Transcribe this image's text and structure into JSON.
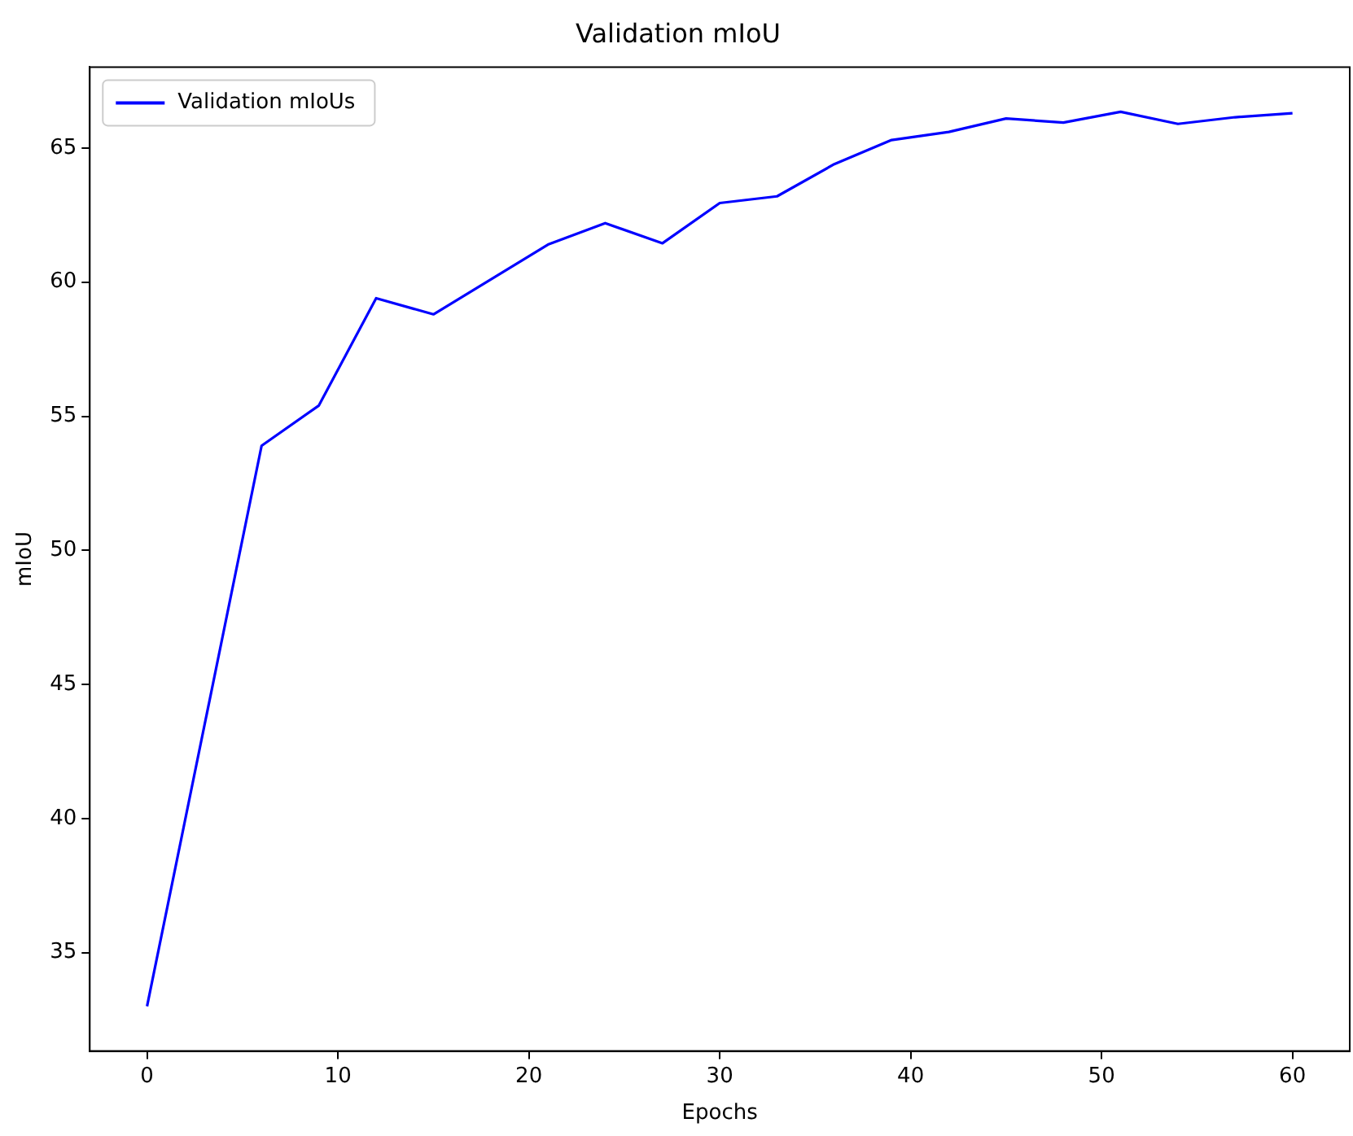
{
  "chart_data": {
    "type": "line",
    "title": "Validation mIoU",
    "xlabel": "Epochs",
    "ylabel": "mIoU",
    "x": [
      0,
      6,
      9,
      12,
      15,
      21,
      24,
      27,
      30,
      33,
      36,
      39,
      42,
      45,
      48,
      51,
      54,
      57,
      60
    ],
    "series": [
      {
        "name": "Validation mIoUs",
        "color": "#0000ff",
        "values": [
          33.0,
          53.9,
          55.4,
          59.4,
          58.8,
          61.4,
          62.2,
          61.45,
          62.95,
          63.2,
          64.4,
          65.3,
          65.6,
          66.1,
          65.95,
          66.35,
          65.9,
          66.15,
          66.3
        ]
      }
    ],
    "xlim": [
      -3,
      63
    ],
    "ylim": [
      31.33,
      68.02
    ],
    "xticks": [
      0,
      10,
      20,
      30,
      40,
      50,
      60
    ],
    "yticks": [
      35,
      40,
      45,
      50,
      55,
      60,
      65
    ],
    "grid": false,
    "legend": "top left",
    "marker": "none",
    "line_style": "solid"
  }
}
